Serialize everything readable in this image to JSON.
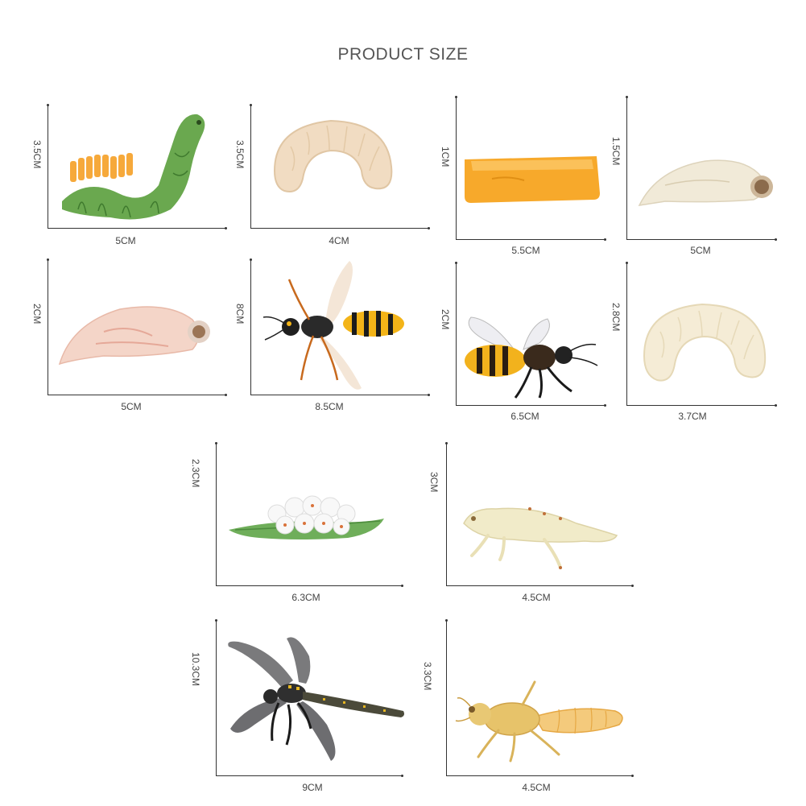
{
  "title": "PRODUCT SIZE",
  "figures": [
    {
      "name": "caterpillar",
      "width": "5CM",
      "height": "3.5CM"
    },
    {
      "name": "grub-larva",
      "width": "4CM",
      "height": "3.5CM"
    },
    {
      "name": "orange-tray",
      "width": "5.5CM",
      "height": "1CM"
    },
    {
      "name": "bee-pupa",
      "width": "5CM",
      "height": "1.5CM"
    },
    {
      "name": "pupa",
      "width": "5CM",
      "height": "2CM"
    },
    {
      "name": "wasp",
      "width": "8.5CM",
      "height": "8CM"
    },
    {
      "name": "honeybee",
      "width": "6.5CM",
      "height": "2CM"
    },
    {
      "name": "larva",
      "width": "3.7CM",
      "height": "2.8CM"
    },
    {
      "name": "eggs-on-leaf",
      "width": "6.3CM",
      "height": "2.3CM"
    },
    {
      "name": "grasshopper-nymph",
      "width": "4.5CM",
      "height": "3CM"
    },
    {
      "name": "dragonfly",
      "width": "9CM",
      "height": "10.3CM"
    },
    {
      "name": "dragonfly-nymph",
      "width": "4.5CM",
      "height": "3.3CM"
    }
  ]
}
